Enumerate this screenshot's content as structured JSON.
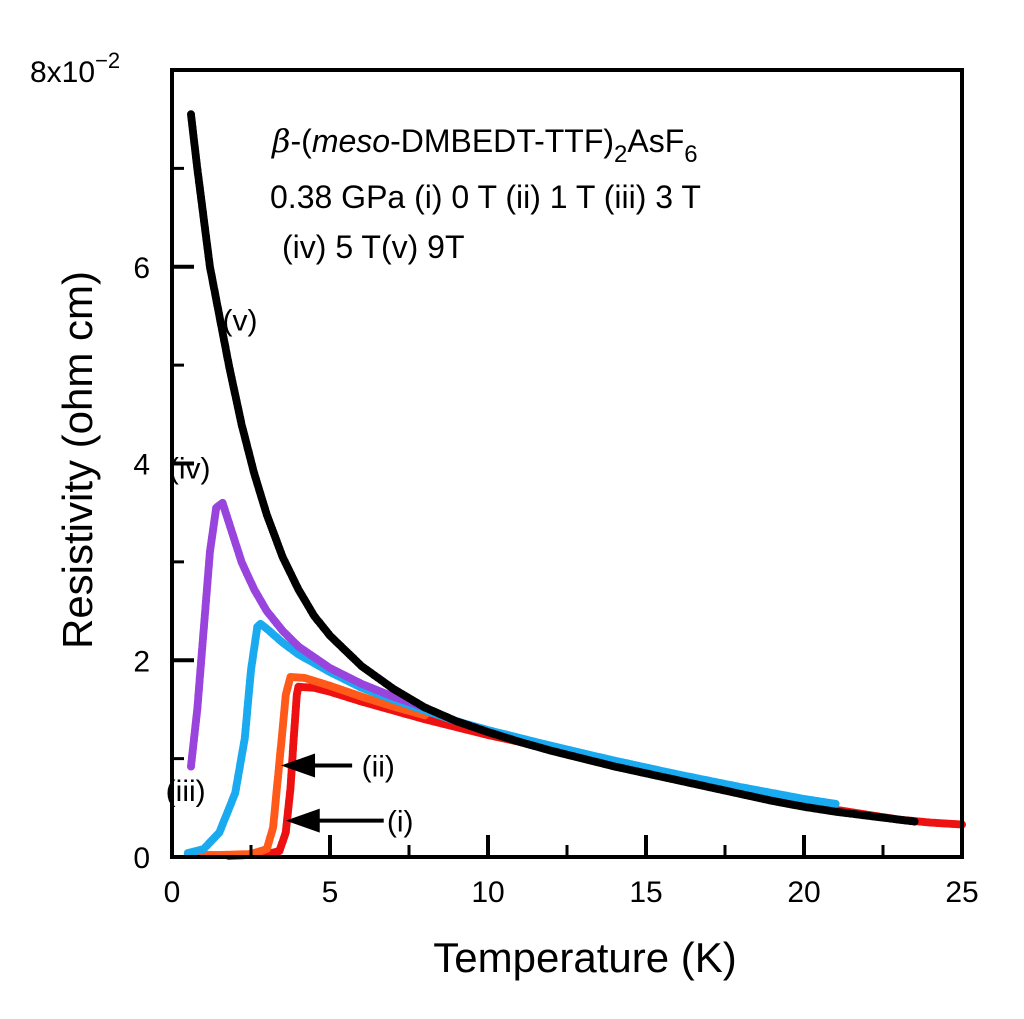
{
  "chart_data": {
    "type": "scatter",
    "title": "β-(meso-DMBEDT-TTF)2AsF6",
    "title_parts": {
      "beta": "β",
      "dash_open": "-(",
      "meso": "meso",
      "main": "-DMBEDT-TTF)",
      "sub2": "2",
      "asf": "AsF",
      "sub6": "6"
    },
    "conditions_line1": "0.38 GPa (i) 0 T (ii) 1 T (iii) 3 T",
    "conditions_line2": "(iv) 5 T(v) 9T",
    "xlabel": "Temperature (K)",
    "ylabel": "Resistivity (ohm cm)",
    "xlim": [
      0,
      25
    ],
    "ylim": [
      0,
      0.08
    ],
    "x_ticks": [
      {
        "value": 0,
        "label": "0"
      },
      {
        "value": 5,
        "label": "5"
      },
      {
        "value": 10,
        "label": "10"
      },
      {
        "value": 15,
        "label": "15"
      },
      {
        "value": 20,
        "label": "20"
      },
      {
        "value": 25,
        "label": "25"
      }
    ],
    "y_ticks": [
      {
        "value": 0,
        "label": "0"
      },
      {
        "value": 0.02,
        "label": "2"
      },
      {
        "value": 0.04,
        "label": "4"
      },
      {
        "value": 0.06,
        "label": "6"
      },
      {
        "value": 0.08,
        "label": ""
      }
    ],
    "y_scale_label": {
      "base": "8x10",
      "exp": "−2"
    },
    "series": [
      {
        "name": "(i) 0 T",
        "label": "(i)",
        "color": "#ee1111",
        "points": [
          [
            1.8,
            0.0001
          ],
          [
            2.4,
            0.0002
          ],
          [
            3.0,
            0.0003
          ],
          [
            3.4,
            0.0006
          ],
          [
            3.6,
            0.0025
          ],
          [
            3.75,
            0.007
          ],
          [
            3.85,
            0.012
          ],
          [
            3.95,
            0.0165
          ],
          [
            4.0,
            0.0173
          ],
          [
            4.5,
            0.0172
          ],
          [
            5,
            0.0168
          ],
          [
            6,
            0.0158
          ],
          [
            7,
            0.0149
          ],
          [
            8,
            0.014
          ],
          [
            9,
            0.0132
          ],
          [
            10,
            0.0124
          ],
          [
            11,
            0.0117
          ],
          [
            12,
            0.011
          ],
          [
            13,
            0.0102
          ],
          [
            14,
            0.0095
          ],
          [
            15,
            0.0088
          ],
          [
            16,
            0.0081
          ],
          [
            17,
            0.0074
          ],
          [
            18,
            0.0067
          ],
          [
            19,
            0.006
          ],
          [
            20,
            0.0054
          ],
          [
            21,
            0.0048
          ],
          [
            22,
            0.0043
          ],
          [
            23,
            0.0038
          ],
          [
            24,
            0.0035
          ],
          [
            25,
            0.0033
          ]
        ]
      },
      {
        "name": "(ii) 1 T",
        "label": "(ii)",
        "color": "#ff5a1a",
        "points": [
          [
            0.5,
            0.0002
          ],
          [
            1.5,
            0.0002
          ],
          [
            2.5,
            0.0003
          ],
          [
            3.0,
            0.0008
          ],
          [
            3.2,
            0.003
          ],
          [
            3.35,
            0.008
          ],
          [
            3.5,
            0.013
          ],
          [
            3.6,
            0.0165
          ],
          [
            3.75,
            0.0183
          ],
          [
            4.2,
            0.0182
          ],
          [
            5,
            0.0174
          ],
          [
            6,
            0.0163
          ],
          [
            7,
            0.0153
          ],
          [
            8,
            0.0144
          ]
        ]
      },
      {
        "name": "(iii) 3 T",
        "label": "(iii)",
        "color": "#1aaaf0",
        "points": [
          [
            0.5,
            0.0004
          ],
          [
            1.0,
            0.0008
          ],
          [
            1.5,
            0.0025
          ],
          [
            2.0,
            0.0065
          ],
          [
            2.3,
            0.012
          ],
          [
            2.5,
            0.019
          ],
          [
            2.7,
            0.0234
          ],
          [
            2.8,
            0.0237
          ],
          [
            3.0,
            0.0232
          ],
          [
            3.5,
            0.0218
          ],
          [
            4,
            0.0206
          ],
          [
            5,
            0.0188
          ],
          [
            6,
            0.0172
          ],
          [
            7,
            0.016
          ],
          [
            8,
            0.0149
          ],
          [
            9,
            0.0138
          ],
          [
            10,
            0.0129
          ],
          [
            12,
            0.0113
          ],
          [
            14,
            0.0098
          ],
          [
            16,
            0.0084
          ],
          [
            18,
            0.0071
          ],
          [
            20,
            0.0059
          ],
          [
            21,
            0.0054
          ]
        ]
      },
      {
        "name": "(iv) 5 T",
        "label": "(iv)",
        "color": "#9944dd",
        "points": [
          [
            0.6,
            0.0092
          ],
          [
            0.8,
            0.015
          ],
          [
            1.0,
            0.023
          ],
          [
            1.2,
            0.031
          ],
          [
            1.4,
            0.0355
          ],
          [
            1.6,
            0.036
          ],
          [
            1.9,
            0.033
          ],
          [
            2.2,
            0.03
          ],
          [
            2.6,
            0.0272
          ],
          [
            3,
            0.025
          ],
          [
            3.5,
            0.023
          ],
          [
            4,
            0.0214
          ],
          [
            5,
            0.0192
          ],
          [
            6,
            0.0176
          ],
          [
            7,
            0.0163
          ],
          [
            8,
            0.0152
          ]
        ]
      },
      {
        "name": "(v) 9 T",
        "label": "(v)",
        "color": "#000000",
        "points": [
          [
            0.6,
            0.0755
          ],
          [
            0.8,
            0.07
          ],
          [
            1.0,
            0.065
          ],
          [
            1.2,
            0.06
          ],
          [
            1.5,
            0.055
          ],
          [
            1.8,
            0.05
          ],
          [
            2.2,
            0.044
          ],
          [
            2.6,
            0.039
          ],
          [
            3,
            0.0348
          ],
          [
            3.5,
            0.0305
          ],
          [
            4,
            0.0272
          ],
          [
            4.5,
            0.0245
          ],
          [
            5,
            0.0225
          ],
          [
            6,
            0.0194
          ],
          [
            7,
            0.0171
          ],
          [
            8,
            0.0152
          ],
          [
            9,
            0.0138
          ],
          [
            10,
            0.0127
          ],
          [
            11,
            0.0117
          ],
          [
            12,
            0.0108
          ],
          [
            13,
            0.01
          ],
          [
            14,
            0.0092
          ],
          [
            15,
            0.0085
          ],
          [
            16,
            0.0078
          ],
          [
            17,
            0.0071
          ],
          [
            18,
            0.0064
          ],
          [
            19,
            0.0057
          ],
          [
            20,
            0.0051
          ],
          [
            21,
            0.0046
          ],
          [
            22,
            0.0042
          ],
          [
            23,
            0.0038
          ],
          [
            23.5,
            0.0036
          ]
        ]
      }
    ],
    "curve_labels": [
      {
        "text": "(v)",
        "x": 1.6,
        "y": 0.0535
      },
      {
        "text": "(iv)",
        "x": -0.1,
        "y": 0.0385
      },
      {
        "text": "(iii)",
        "x": -0.2,
        "y": 0.0057
      }
    ],
    "arrows": [
      {
        "text": "(ii)",
        "tip_x": 3.45,
        "tip_y": 0.0093,
        "tail_x": 5.7,
        "tail_y": 0.0093,
        "label_x": 6.0
      },
      {
        "text": "(i)",
        "tip_x": 3.6,
        "tip_y": 0.0037,
        "tail_x": 6.7,
        "tail_y": 0.0037,
        "label_x": 6.8
      }
    ]
  }
}
